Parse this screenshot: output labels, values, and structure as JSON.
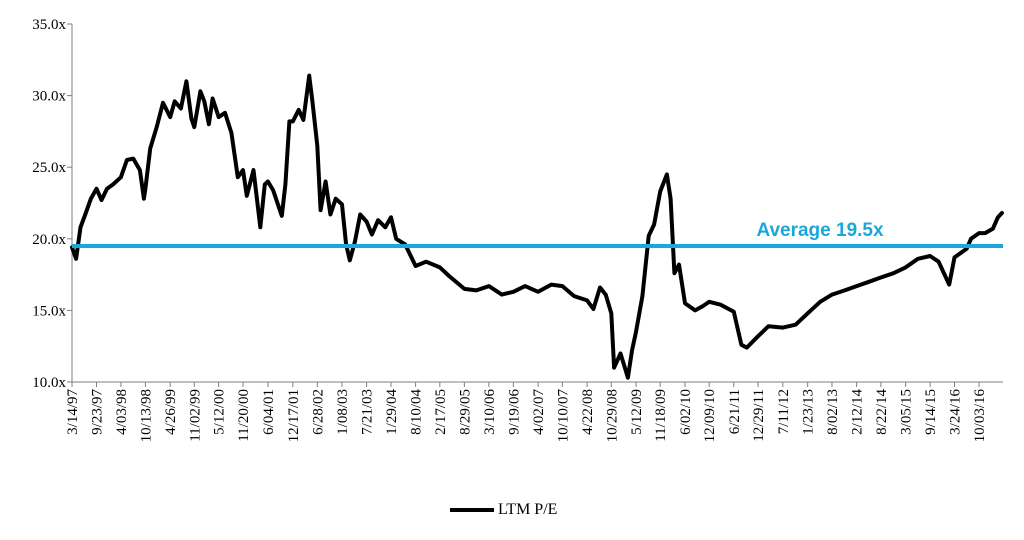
{
  "chart_data": {
    "type": "line",
    "x_ticks": [
      "3/14/97",
      "9/23/97",
      "4/03/98",
      "10/13/98",
      "4/26/99",
      "11/02/99",
      "5/12/00",
      "11/20/00",
      "6/04/01",
      "12/17/01",
      "6/28/02",
      "1/08/03",
      "7/21/03",
      "1/29/04",
      "8/10/04",
      "2/17/05",
      "8/29/05",
      "3/10/06",
      "9/19/06",
      "4/02/07",
      "10/10/07",
      "4/22/08",
      "10/29/08",
      "5/12/09",
      "11/18/09",
      "6/02/10",
      "12/09/10",
      "6/21/11",
      "12/29/11",
      "7/11/12",
      "1/23/13",
      "8/02/13",
      "2/12/14",
      "8/22/14",
      "3/05/15",
      "9/14/15",
      "3/24/16",
      "10/03/16"
    ],
    "y_ticks": [
      "10.0x",
      "15.0x",
      "20.0x",
      "25.0x",
      "30.0x",
      "35.0x"
    ],
    "ylim": [
      10,
      35
    ],
    "series": [
      {
        "name": "LTM P/E",
        "color": "#000000",
        "points": [
          [
            "1997-03-14",
            19.4
          ],
          [
            "1997-04-15",
            18.6
          ],
          [
            "1997-05-20",
            20.8
          ],
          [
            "1997-07-01",
            21.8
          ],
          [
            "1997-08-10",
            22.8
          ],
          [
            "1997-09-23",
            23.5
          ],
          [
            "1997-11-01",
            22.7
          ],
          [
            "1997-12-15",
            23.5
          ],
          [
            "1998-02-01",
            23.8
          ],
          [
            "1998-04-03",
            24.3
          ],
          [
            "1998-05-20",
            25.5
          ],
          [
            "1998-07-10",
            25.6
          ],
          [
            "1998-08-31",
            24.8
          ],
          [
            "1998-10-01",
            22.8
          ],
          [
            "1998-10-13",
            23.5
          ],
          [
            "1998-11-20",
            26.3
          ],
          [
            "1999-01-10",
            27.8
          ],
          [
            "1999-03-01",
            29.5
          ],
          [
            "1999-04-26",
            28.5
          ],
          [
            "1999-06-01",
            29.6
          ],
          [
            "1999-07-20",
            29.1
          ],
          [
            "1999-09-01",
            31.0
          ],
          [
            "1999-10-10",
            28.4
          ],
          [
            "1999-11-02",
            27.8
          ],
          [
            "1999-12-20",
            30.3
          ],
          [
            "2000-01-20",
            29.6
          ],
          [
            "2000-02-25",
            28.0
          ],
          [
            "2000-03-25",
            29.8
          ],
          [
            "2000-05-12",
            28.5
          ],
          [
            "2000-07-01",
            28.8
          ],
          [
            "2000-08-20",
            27.4
          ],
          [
            "2000-10-10",
            24.3
          ],
          [
            "2000-11-20",
            24.8
          ],
          [
            "2000-12-20",
            23.0
          ],
          [
            "2001-02-10",
            24.8
          ],
          [
            "2001-04-05",
            20.8
          ],
          [
            "2001-05-10",
            23.8
          ],
          [
            "2001-06-04",
            24.0
          ],
          [
            "2001-07-15",
            23.4
          ],
          [
            "2001-09-21",
            21.6
          ],
          [
            "2001-10-20",
            23.8
          ],
          [
            "2001-11-20",
            28.2
          ],
          [
            "2001-12-17",
            28.2
          ],
          [
            "2002-02-01",
            29.0
          ],
          [
            "2002-03-10",
            28.3
          ],
          [
            "2002-04-25",
            31.4
          ],
          [
            "2002-05-20",
            29.6
          ],
          [
            "2002-06-28",
            26.5
          ],
          [
            "2002-07-24",
            22.0
          ],
          [
            "2002-09-01",
            24.0
          ],
          [
            "2002-10-09",
            21.7
          ],
          [
            "2002-11-20",
            22.8
          ],
          [
            "2003-01-08",
            22.4
          ],
          [
            "2003-02-10",
            19.6
          ],
          [
            "2003-03-11",
            18.5
          ],
          [
            "2003-04-20",
            19.8
          ],
          [
            "2003-06-01",
            21.7
          ],
          [
            "2003-07-21",
            21.2
          ],
          [
            "2003-09-01",
            20.3
          ],
          [
            "2003-10-20",
            21.3
          ],
          [
            "2003-12-15",
            20.8
          ],
          [
            "2004-01-29",
            21.5
          ],
          [
            "2004-03-10",
            20.0
          ],
          [
            "2004-05-20",
            19.6
          ],
          [
            "2004-08-10",
            18.1
          ],
          [
            "2004-11-01",
            18.4
          ],
          [
            "2005-02-17",
            18.0
          ],
          [
            "2005-05-01",
            17.4
          ],
          [
            "2005-08-29",
            16.5
          ],
          [
            "2005-12-01",
            16.4
          ],
          [
            "2006-03-10",
            16.7
          ],
          [
            "2006-06-20",
            16.1
          ],
          [
            "2006-09-19",
            16.3
          ],
          [
            "2006-12-20",
            16.7
          ],
          [
            "2007-04-02",
            16.3
          ],
          [
            "2007-07-15",
            16.8
          ],
          [
            "2007-10-10",
            16.7
          ],
          [
            "2008-01-10",
            16.0
          ],
          [
            "2008-04-22",
            15.7
          ],
          [
            "2008-06-10",
            15.1
          ],
          [
            "2008-08-01",
            16.6
          ],
          [
            "2008-09-15",
            16.1
          ],
          [
            "2008-10-29",
            14.8
          ],
          [
            "2008-11-20",
            11.0
          ],
          [
            "2009-01-10",
            12.0
          ],
          [
            "2009-03-09",
            10.3
          ],
          [
            "2009-04-10",
            12.2
          ],
          [
            "2009-05-12",
            13.5
          ],
          [
            "2009-07-01",
            16.0
          ],
          [
            "2009-08-20",
            20.2
          ],
          [
            "2009-10-01",
            21.0
          ],
          [
            "2009-11-18",
            23.3
          ],
          [
            "2010-01-10",
            24.5
          ],
          [
            "2010-02-08",
            22.8
          ],
          [
            "2010-03-10",
            17.6
          ],
          [
            "2010-04-15",
            18.2
          ],
          [
            "2010-06-02",
            15.5
          ],
          [
            "2010-08-20",
            15.0
          ],
          [
            "2010-10-20",
            15.3
          ],
          [
            "2010-12-09",
            15.6
          ],
          [
            "2011-03-10",
            15.4
          ],
          [
            "2011-06-21",
            14.9
          ],
          [
            "2011-08-20",
            12.6
          ],
          [
            "2011-10-01",
            12.4
          ],
          [
            "2011-12-29",
            13.2
          ],
          [
            "2012-03-20",
            13.9
          ],
          [
            "2012-07-11",
            13.8
          ],
          [
            "2012-10-20",
            14.0
          ],
          [
            "2013-01-23",
            14.8
          ],
          [
            "2013-05-01",
            15.6
          ],
          [
            "2013-08-02",
            16.1
          ],
          [
            "2013-11-10",
            16.4
          ],
          [
            "2014-02-12",
            16.7
          ],
          [
            "2014-05-20",
            17.0
          ],
          [
            "2014-08-22",
            17.3
          ],
          [
            "2014-11-30",
            17.6
          ],
          [
            "2015-03-05",
            18.0
          ],
          [
            "2015-06-10",
            18.6
          ],
          [
            "2015-09-14",
            18.8
          ],
          [
            "2015-11-20",
            18.4
          ],
          [
            "2016-02-11",
            16.8
          ],
          [
            "2016-03-24",
            18.7
          ],
          [
            "2016-06-27",
            19.3
          ],
          [
            "2016-08-01",
            20.0
          ],
          [
            "2016-10-03",
            20.4
          ],
          [
            "2016-11-20",
            20.4
          ],
          [
            "2017-01-20",
            20.7
          ],
          [
            "2017-03-01",
            21.5
          ],
          [
            "2017-04-01",
            21.8
          ]
        ]
      }
    ],
    "average": {
      "value": 19.5,
      "label": "Average 19.5x",
      "color": "#1aa7dc"
    },
    "legend": {
      "label": "LTM P/E",
      "position": "bottom"
    }
  }
}
